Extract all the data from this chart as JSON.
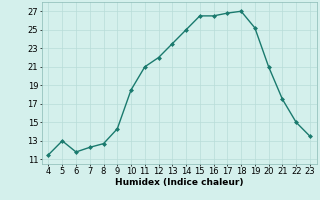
{
  "x": [
    4,
    5,
    6,
    7,
    8,
    9,
    10,
    11,
    12,
    13,
    14,
    15,
    16,
    17,
    18,
    19,
    20,
    21,
    22,
    23
  ],
  "y": [
    11.5,
    13.0,
    11.8,
    12.3,
    12.7,
    14.3,
    18.5,
    21.0,
    22.0,
    23.5,
    25.0,
    26.5,
    26.5,
    26.8,
    27.0,
    25.2,
    21.0,
    17.5,
    15.0,
    13.5
  ],
  "line_color": "#1a7a6e",
  "marker": "D",
  "marker_size": 2.0,
  "background_color": "#d4f0ec",
  "grid_color": "#b8ddd8",
  "xlabel": "Humidex (Indice chaleur)",
  "yticks": [
    11,
    13,
    15,
    17,
    19,
    21,
    23,
    25,
    27
  ],
  "xticks": [
    4,
    5,
    6,
    7,
    8,
    9,
    10,
    11,
    12,
    13,
    14,
    15,
    16,
    17,
    18,
    19,
    20,
    21,
    22,
    23
  ],
  "xlim": [
    3.5,
    23.5
  ],
  "ylim": [
    10.5,
    28.0
  ],
  "xlabel_fontsize": 6.5,
  "tick_fontsize": 6.0,
  "linewidth": 1.0
}
